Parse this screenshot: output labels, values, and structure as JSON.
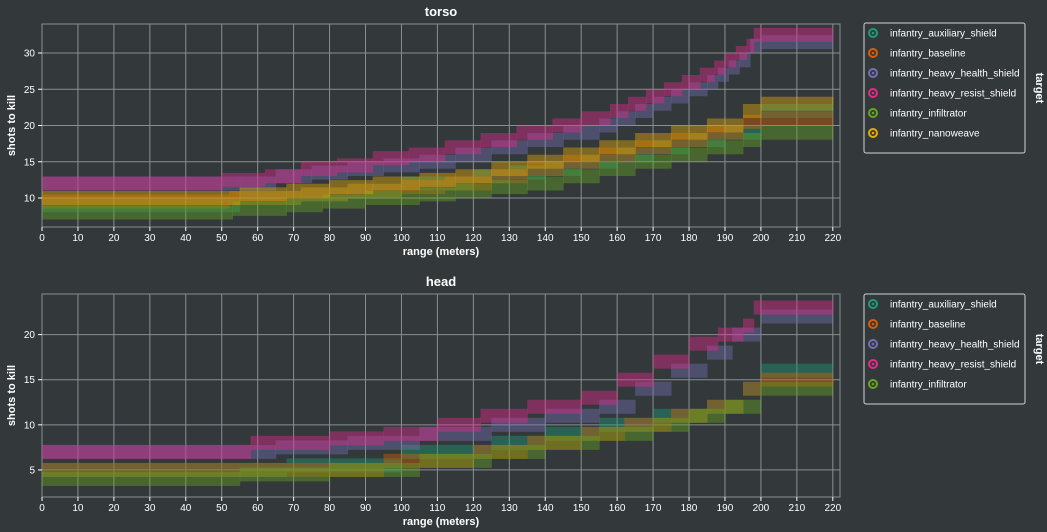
{
  "colors": {
    "background": "#33383b",
    "grid": "#8a8f92",
    "text": "#ffffff"
  },
  "chart_data": [
    {
      "type": "heatmap",
      "title": "torso",
      "xlabel": "range (meters)",
      "ylabel": "shots to kill",
      "x_ticks": [
        0,
        10,
        20,
        30,
        40,
        50,
        60,
        70,
        80,
        90,
        100,
        110,
        120,
        130,
        140,
        150,
        160,
        170,
        180,
        190,
        200,
        210,
        220
      ],
      "y_ticks": [
        10,
        15,
        20,
        25,
        30
      ],
      "xlim": [
        0,
        222
      ],
      "ylim": [
        6,
        34
      ],
      "legend_title": "target",
      "legend_position": "right",
      "grid": true,
      "series": [
        {
          "name": "infantry_auxiliary_shield",
          "color": "#1b9e77",
          "steps": [
            [
              0,
              9
            ],
            [
              55,
              10
            ],
            [
              72,
              10.5
            ],
            [
              85,
              11
            ],
            [
              100,
              12
            ],
            [
              120,
              13
            ],
            [
              130,
              13.5
            ],
            [
              140,
              14
            ],
            [
              150,
              15
            ],
            [
              160,
              16
            ],
            [
              170,
              17
            ],
            [
              180,
              18
            ],
            [
              190,
              19
            ],
            [
              200,
              22
            ],
            [
              220,
              22
            ]
          ]
        },
        {
          "name": "infantry_baseline",
          "color": "#d95f02",
          "steps": [
            [
              0,
              9.5
            ],
            [
              52,
              10
            ],
            [
              72,
              10.5
            ],
            [
              85,
              11
            ],
            [
              100,
              11.5
            ],
            [
              112,
              12
            ],
            [
              125,
              13
            ],
            [
              135,
              14
            ],
            [
              145,
              15
            ],
            [
              155,
              16
            ],
            [
              165,
              17
            ],
            [
              175,
              18
            ],
            [
              185,
              19
            ],
            [
              195,
              20.5
            ],
            [
              200,
              21
            ],
            [
              220,
              21
            ]
          ]
        },
        {
          "name": "infantry_heavy_health_shield",
          "color": "#7570b3",
          "steps": [
            [
              0,
              12
            ],
            [
              55,
              12
            ],
            [
              65,
              13
            ],
            [
              75,
              13.5
            ],
            [
              85,
              14
            ],
            [
              95,
              14.5
            ],
            [
              105,
              15
            ],
            [
              115,
              16
            ],
            [
              125,
              17
            ],
            [
              135,
              18
            ],
            [
              145,
              19
            ],
            [
              155,
              20
            ],
            [
              160,
              21
            ],
            [
              165,
              22
            ],
            [
              170,
              23
            ],
            [
              175,
              24
            ],
            [
              180,
              25
            ],
            [
              185,
              26
            ],
            [
              188,
              27
            ],
            [
              191,
              28
            ],
            [
              194,
              29
            ],
            [
              197,
              31
            ],
            [
              200,
              31.5
            ],
            [
              220,
              31.5
            ]
          ]
        },
        {
          "name": "infantry_heavy_resist_shield",
          "color": "#e7298a",
          "steps": [
            [
              0,
              12
            ],
            [
              50,
              12.5
            ],
            [
              62,
              13
            ],
            [
              72,
              14
            ],
            [
              82,
              14.5
            ],
            [
              92,
              15.5
            ],
            [
              102,
              16
            ],
            [
              112,
              17
            ],
            [
              122,
              18
            ],
            [
              132,
              19
            ],
            [
              142,
              20
            ],
            [
              150,
              21
            ],
            [
              158,
              22
            ],
            [
              163,
              23
            ],
            [
              168,
              24
            ],
            [
              173,
              25
            ],
            [
              178,
              26
            ],
            [
              183,
              27
            ],
            [
              187,
              28
            ],
            [
              190,
              29
            ],
            [
              193,
              30
            ],
            [
              196,
              31
            ],
            [
              198,
              32.5
            ],
            [
              220,
              32.5
            ]
          ]
        },
        {
          "name": "infantry_infiltrator",
          "color": "#66a61e",
          "steps": [
            [
              0,
              8
            ],
            [
              53,
              8.5
            ],
            [
              68,
              9
            ],
            [
              78,
              9.5
            ],
            [
              90,
              10
            ],
            [
              105,
              10.5
            ],
            [
              115,
              11
            ],
            [
              125,
              11.5
            ],
            [
              135,
              12
            ],
            [
              145,
              13
            ],
            [
              155,
              14
            ],
            [
              165,
              15
            ],
            [
              175,
              16
            ],
            [
              185,
              17
            ],
            [
              195,
              18
            ],
            [
              200,
              19
            ],
            [
              220,
              19
            ]
          ]
        },
        {
          "name": "infantry_nanoweave",
          "color": "#e6ab02",
          "steps": [
            [
              0,
              10
            ],
            [
              55,
              10.5
            ],
            [
              68,
              11
            ],
            [
              80,
              11.5
            ],
            [
              92,
              12
            ],
            [
              105,
              12.5
            ],
            [
              115,
              13
            ],
            [
              125,
              14
            ],
            [
              135,
              15
            ],
            [
              145,
              16
            ],
            [
              155,
              17
            ],
            [
              165,
              18
            ],
            [
              175,
              19
            ],
            [
              185,
              20
            ],
            [
              195,
              22
            ],
            [
              200,
              23
            ],
            [
              220,
              23
            ]
          ]
        }
      ]
    },
    {
      "type": "heatmap",
      "title": "head",
      "xlabel": "range (meters)",
      "ylabel": "shots to kill",
      "x_ticks": [
        0,
        10,
        20,
        30,
        40,
        50,
        60,
        70,
        80,
        90,
        100,
        110,
        120,
        130,
        140,
        150,
        160,
        170,
        180,
        190,
        200,
        210,
        220
      ],
      "y_ticks": [
        5,
        10,
        15,
        20
      ],
      "xlim": [
        0,
        222
      ],
      "ylim": [
        2,
        24.5
      ],
      "legend_title": "target",
      "legend_position": "right",
      "grid": true,
      "series": [
        {
          "name": "infantry_auxiliary_shield",
          "color": "#1b9e77",
          "steps": [
            [
              0,
              5
            ],
            [
              68,
              5.5
            ],
            [
              100,
              7
            ],
            [
              125,
              8
            ],
            [
              140,
              9
            ],
            [
              155,
              10
            ],
            [
              170,
              11
            ],
            [
              185,
              12
            ],
            [
              195,
              14
            ],
            [
              200,
              16
            ],
            [
              220,
              16
            ]
          ]
        },
        {
          "name": "infantry_baseline",
          "color": "#d95f02",
          "steps": [
            [
              0,
              5
            ],
            [
              70,
              5
            ],
            [
              95,
              6
            ],
            [
              120,
              7
            ],
            [
              135,
              8
            ],
            [
              150,
              9
            ],
            [
              162,
              10
            ],
            [
              175,
              11
            ],
            [
              185,
              12
            ],
            [
              195,
              14
            ],
            [
              200,
              15
            ],
            [
              220,
              15
            ]
          ]
        },
        {
          "name": "infantry_heavy_health_shield",
          "color": "#7570b3",
          "steps": [
            [
              0,
              7
            ],
            [
              65,
              7.5
            ],
            [
              85,
              8
            ],
            [
              105,
              9
            ],
            [
              125,
              10
            ],
            [
              140,
              11
            ],
            [
              155,
              12
            ],
            [
              165,
              14
            ],
            [
              175,
              16
            ],
            [
              185,
              18
            ],
            [
              192,
              20
            ],
            [
              200,
              22
            ],
            [
              220,
              22
            ]
          ]
        },
        {
          "name": "infantry_heavy_resist_shield",
          "color": "#e7298a",
          "steps": [
            [
              0,
              7
            ],
            [
              58,
              8
            ],
            [
              80,
              8.5
            ],
            [
              95,
              9
            ],
            [
              110,
              10
            ],
            [
              122,
              11
            ],
            [
              135,
              12
            ],
            [
              150,
              13
            ],
            [
              160,
              15
            ],
            [
              170,
              17
            ],
            [
              180,
              19
            ],
            [
              188,
              20
            ],
            [
              195,
              21
            ],
            [
              198,
              23
            ],
            [
              220,
              23
            ]
          ]
        },
        {
          "name": "infantry_infiltrator",
          "color": "#66a61e",
          "steps": [
            [
              0,
              4
            ],
            [
              55,
              4.5
            ],
            [
              80,
              5
            ],
            [
              105,
              6
            ],
            [
              125,
              7
            ],
            [
              140,
              8
            ],
            [
              155,
              9
            ],
            [
              170,
              10
            ],
            [
              180,
              11
            ],
            [
              190,
              12
            ],
            [
              200,
              14
            ],
            [
              220,
              14
            ]
          ]
        }
      ]
    }
  ]
}
